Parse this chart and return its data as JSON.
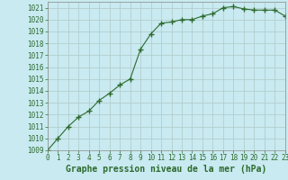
{
  "x": [
    0,
    1,
    2,
    3,
    4,
    5,
    6,
    7,
    8,
    9,
    10,
    11,
    12,
    13,
    14,
    15,
    16,
    17,
    18,
    19,
    20,
    21,
    22,
    23
  ],
  "y": [
    1009.0,
    1010.0,
    1011.0,
    1011.8,
    1012.3,
    1013.2,
    1013.8,
    1014.5,
    1015.0,
    1017.5,
    1018.8,
    1019.7,
    1019.8,
    1020.0,
    1020.0,
    1020.3,
    1020.5,
    1021.0,
    1021.1,
    1020.9,
    1020.8,
    1020.8,
    1020.8,
    1020.3
  ],
  "line_color": "#2d6a2d",
  "marker": "+",
  "marker_size": 4,
  "bg_color": "#c8eaf0",
  "grid_color": "#b0c8c8",
  "xlabel": "Graphe pression niveau de la mer (hPa)",
  "xlabel_fontsize": 7,
  "xlabel_color": "#2d6a2d",
  "tick_color": "#2d6a2d",
  "tick_fontsize": 5.5,
  "ylim": [
    1009,
    1021.5
  ],
  "yticks": [
    1009,
    1010,
    1011,
    1012,
    1013,
    1014,
    1015,
    1016,
    1017,
    1018,
    1019,
    1020,
    1021
  ],
  "xlim": [
    0,
    23
  ],
  "xticks": [
    0,
    1,
    2,
    3,
    4,
    5,
    6,
    7,
    8,
    9,
    10,
    11,
    12,
    13,
    14,
    15,
    16,
    17,
    18,
    19,
    20,
    21,
    22,
    23
  ]
}
